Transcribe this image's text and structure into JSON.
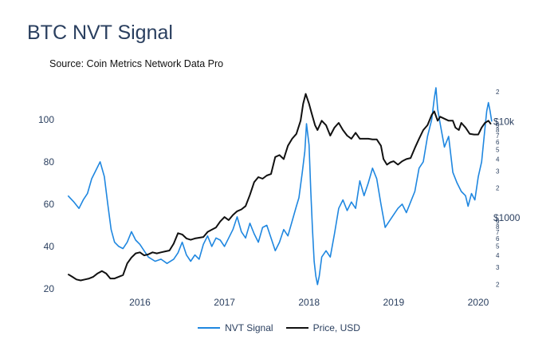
{
  "chart_data": {
    "type": "line",
    "title": "BTC NVT Signal",
    "subtitle": "Source: Coin Metrics Network Data Pro",
    "x_ticks": [
      "2016",
      "2017",
      "2018",
      "2019",
      "2020"
    ],
    "x_range": [
      2015.1,
      2020.17
    ],
    "left_axis": {
      "label": "",
      "range": [
        20,
        115
      ],
      "ticks": [
        20,
        40,
        60,
        80,
        100
      ]
    },
    "right_axis": {
      "scale": "log",
      "range": [
        180,
        22000
      ],
      "labeled_ticks": [
        {
          "value": 1000,
          "label": "$1000"
        },
        {
          "value": 10000,
          "label": "$10k"
        }
      ],
      "minor_ticks": [
        {
          "value": 200,
          "label": "2"
        },
        {
          "value": 300,
          "label": "3"
        },
        {
          "value": 400,
          "label": "4"
        },
        {
          "value": 500,
          "label": "5"
        },
        {
          "value": 600,
          "label": "6"
        },
        {
          "value": 700,
          "label": "7"
        },
        {
          "value": 800,
          "label": "8"
        },
        {
          "value": 900,
          "label": "9"
        },
        {
          "value": 2000,
          "label": "2"
        },
        {
          "value": 3000,
          "label": "3"
        },
        {
          "value": 4000,
          "label": "4"
        },
        {
          "value": 5000,
          "label": "5"
        },
        {
          "value": 6000,
          "label": "6"
        },
        {
          "value": 7000,
          "label": "7"
        },
        {
          "value": 8000,
          "label": "8"
        },
        {
          "value": 9000,
          "label": "9"
        },
        {
          "value": 20000,
          "label": "2"
        }
      ]
    },
    "grid": false,
    "legend_position": "bottom-center",
    "series": [
      {
        "name": "NVT Signal",
        "axis": "left",
        "color": "#1f87e0",
        "points": [
          [
            2015.15,
            64
          ],
          [
            2015.22,
            61
          ],
          [
            2015.28,
            58
          ],
          [
            2015.33,
            62
          ],
          [
            2015.38,
            65
          ],
          [
            2015.43,
            72
          ],
          [
            2015.48,
            76
          ],
          [
            2015.53,
            80
          ],
          [
            2015.58,
            73
          ],
          [
            2015.62,
            60
          ],
          [
            2015.66,
            48
          ],
          [
            2015.7,
            42
          ],
          [
            2015.75,
            40
          ],
          [
            2015.8,
            39
          ],
          [
            2015.85,
            42
          ],
          [
            2015.9,
            47
          ],
          [
            2015.95,
            43
          ],
          [
            2016.0,
            41
          ],
          [
            2016.05,
            38
          ],
          [
            2016.1,
            35
          ],
          [
            2016.18,
            33
          ],
          [
            2016.25,
            34
          ],
          [
            2016.32,
            32
          ],
          [
            2016.4,
            34
          ],
          [
            2016.45,
            37
          ],
          [
            2016.5,
            42
          ],
          [
            2016.55,
            36
          ],
          [
            2016.6,
            33
          ],
          [
            2016.65,
            36
          ],
          [
            2016.7,
            34
          ],
          [
            2016.75,
            41
          ],
          [
            2016.8,
            45
          ],
          [
            2016.85,
            40
          ],
          [
            2016.9,
            44
          ],
          [
            2016.95,
            43
          ],
          [
            2017.0,
            40
          ],
          [
            2017.05,
            44
          ],
          [
            2017.1,
            48
          ],
          [
            2017.15,
            54
          ],
          [
            2017.2,
            47
          ],
          [
            2017.25,
            44
          ],
          [
            2017.3,
            51
          ],
          [
            2017.35,
            46
          ],
          [
            2017.4,
            42
          ],
          [
            2017.45,
            49
          ],
          [
            2017.5,
            50
          ],
          [
            2017.55,
            44
          ],
          [
            2017.6,
            38
          ],
          [
            2017.65,
            42
          ],
          [
            2017.7,
            48
          ],
          [
            2017.75,
            45
          ],
          [
            2017.8,
            52
          ],
          [
            2017.85,
            59
          ],
          [
            2017.88,
            63
          ],
          [
            2017.92,
            75
          ],
          [
            2017.95,
            85
          ],
          [
            2017.97,
            98
          ],
          [
            2018.0,
            88
          ],
          [
            2018.02,
            66
          ],
          [
            2018.04,
            48
          ],
          [
            2018.06,
            33
          ],
          [
            2018.08,
            26
          ],
          [
            2018.1,
            22
          ],
          [
            2018.12,
            26
          ],
          [
            2018.15,
            35
          ],
          [
            2018.2,
            38
          ],
          [
            2018.25,
            35
          ],
          [
            2018.3,
            46
          ],
          [
            2018.35,
            58
          ],
          [
            2018.4,
            62
          ],
          [
            2018.45,
            57
          ],
          [
            2018.5,
            61
          ],
          [
            2018.55,
            58
          ],
          [
            2018.6,
            71
          ],
          [
            2018.65,
            64
          ],
          [
            2018.7,
            70
          ],
          [
            2018.75,
            77
          ],
          [
            2018.8,
            72
          ],
          [
            2018.85,
            60
          ],
          [
            2018.9,
            49
          ],
          [
            2018.95,
            52
          ],
          [
            2019.0,
            55
          ],
          [
            2019.05,
            58
          ],
          [
            2019.1,
            60
          ],
          [
            2019.15,
            56
          ],
          [
            2019.2,
            61
          ],
          [
            2019.25,
            66
          ],
          [
            2019.3,
            77
          ],
          [
            2019.35,
            80
          ],
          [
            2019.4,
            92
          ],
          [
            2019.45,
            100
          ],
          [
            2019.48,
            110
          ],
          [
            2019.5,
            115
          ],
          [
            2019.52,
            105
          ],
          [
            2019.55,
            98
          ],
          [
            2019.6,
            87
          ],
          [
            2019.65,
            92
          ],
          [
            2019.7,
            75
          ],
          [
            2019.75,
            70
          ],
          [
            2019.8,
            66
          ],
          [
            2019.85,
            64
          ],
          [
            2019.88,
            59
          ],
          [
            2019.92,
            65
          ],
          [
            2019.96,
            62
          ],
          [
            2020.0,
            73
          ],
          [
            2020.04,
            80
          ],
          [
            2020.08,
            96
          ],
          [
            2020.1,
            104
          ],
          [
            2020.12,
            108
          ],
          [
            2020.14,
            104
          ],
          [
            2020.16,
            99
          ]
        ]
      },
      {
        "name": "Price, USD",
        "axis": "right",
        "color": "#111111",
        "points": [
          [
            2015.15,
            255
          ],
          [
            2015.2,
            240
          ],
          [
            2015.25,
            225
          ],
          [
            2015.3,
            220
          ],
          [
            2015.35,
            225
          ],
          [
            2015.4,
            230
          ],
          [
            2015.45,
            240
          ],
          [
            2015.5,
            260
          ],
          [
            2015.55,
            275
          ],
          [
            2015.6,
            260
          ],
          [
            2015.65,
            230
          ],
          [
            2015.7,
            230
          ],
          [
            2015.75,
            240
          ],
          [
            2015.8,
            250
          ],
          [
            2015.85,
            330
          ],
          [
            2015.9,
            380
          ],
          [
            2015.95,
            420
          ],
          [
            2016.0,
            430
          ],
          [
            2016.05,
            400
          ],
          [
            2016.1,
            410
          ],
          [
            2016.15,
            430
          ],
          [
            2016.2,
            420
          ],
          [
            2016.25,
            430
          ],
          [
            2016.3,
            440
          ],
          [
            2016.35,
            450
          ],
          [
            2016.4,
            530
          ],
          [
            2016.45,
            680
          ],
          [
            2016.5,
            660
          ],
          [
            2016.55,
            600
          ],
          [
            2016.6,
            580
          ],
          [
            2016.65,
            600
          ],
          [
            2016.7,
            610
          ],
          [
            2016.75,
            620
          ],
          [
            2016.8,
            700
          ],
          [
            2016.85,
            740
          ],
          [
            2016.9,
            780
          ],
          [
            2016.95,
            900
          ],
          [
            2017.0,
            1000
          ],
          [
            2017.05,
            930
          ],
          [
            2017.1,
            1050
          ],
          [
            2017.15,
            1150
          ],
          [
            2017.2,
            1200
          ],
          [
            2017.25,
            1300
          ],
          [
            2017.3,
            1700
          ],
          [
            2017.35,
            2300
          ],
          [
            2017.4,
            2600
          ],
          [
            2017.45,
            2500
          ],
          [
            2017.5,
            2700
          ],
          [
            2017.55,
            2800
          ],
          [
            2017.6,
            4200
          ],
          [
            2017.65,
            4400
          ],
          [
            2017.7,
            4000
          ],
          [
            2017.75,
            5500
          ],
          [
            2017.8,
            6500
          ],
          [
            2017.85,
            7300
          ],
          [
            2017.9,
            10000
          ],
          [
            2017.93,
            15000
          ],
          [
            2017.96,
            19000
          ],
          [
            2018.0,
            15000
          ],
          [
            2018.03,
            12000
          ],
          [
            2018.07,
            9000
          ],
          [
            2018.1,
            8000
          ],
          [
            2018.15,
            10000
          ],
          [
            2018.2,
            9000
          ],
          [
            2018.25,
            7000
          ],
          [
            2018.3,
            8500
          ],
          [
            2018.35,
            9500
          ],
          [
            2018.4,
            8000
          ],
          [
            2018.45,
            7000
          ],
          [
            2018.5,
            6500
          ],
          [
            2018.55,
            7500
          ],
          [
            2018.6,
            6500
          ],
          [
            2018.65,
            6500
          ],
          [
            2018.7,
            6500
          ],
          [
            2018.75,
            6400
          ],
          [
            2018.8,
            6400
          ],
          [
            2018.85,
            5500
          ],
          [
            2018.88,
            4000
          ],
          [
            2018.92,
            3500
          ],
          [
            2018.96,
            3700
          ],
          [
            2019.0,
            3800
          ],
          [
            2019.05,
            3500
          ],
          [
            2019.1,
            3800
          ],
          [
            2019.15,
            4000
          ],
          [
            2019.2,
            4100
          ],
          [
            2019.25,
            5200
          ],
          [
            2019.3,
            6500
          ],
          [
            2019.35,
            8000
          ],
          [
            2019.4,
            9000
          ],
          [
            2019.45,
            11500
          ],
          [
            2019.48,
            12500
          ],
          [
            2019.52,
            10000
          ],
          [
            2019.55,
            11000
          ],
          [
            2019.6,
            10500
          ],
          [
            2019.65,
            10000
          ],
          [
            2019.7,
            10000
          ],
          [
            2019.73,
            8500
          ],
          [
            2019.77,
            8000
          ],
          [
            2019.8,
            9500
          ],
          [
            2019.85,
            8500
          ],
          [
            2019.9,
            7300
          ],
          [
            2019.95,
            7200
          ],
          [
            2020.0,
            7200
          ],
          [
            2020.04,
            8500
          ],
          [
            2020.08,
            9500
          ],
          [
            2020.12,
            10000
          ],
          [
            2020.15,
            9200
          ]
        ]
      }
    ]
  }
}
